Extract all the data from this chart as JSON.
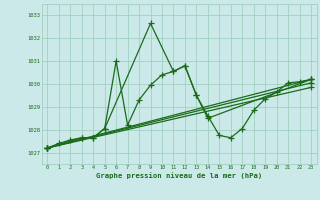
{
  "title": "Graphe pression niveau de la mer (hPa)",
  "background_color": "#cce9e9",
  "grid_color": "#99ccbb",
  "line_color": "#1a6b1a",
  "xlim": [
    -0.5,
    23.5
  ],
  "ylim": [
    1026.5,
    1033.5
  ],
  "yticks": [
    1027,
    1028,
    1029,
    1030,
    1031,
    1032,
    1033
  ],
  "xticks": [
    0,
    1,
    2,
    3,
    4,
    5,
    6,
    7,
    8,
    9,
    10,
    11,
    12,
    13,
    14,
    15,
    16,
    17,
    18,
    19,
    20,
    21,
    22,
    23
  ],
  "series_main": [
    [
      0,
      1027.2
    ],
    [
      1,
      1027.4
    ],
    [
      2,
      1027.55
    ],
    [
      3,
      1027.65
    ],
    [
      4,
      1027.65
    ],
    [
      5,
      1028.05
    ],
    [
      6,
      1031.0
    ],
    [
      7,
      1028.2
    ],
    [
      8,
      1029.3
    ],
    [
      9,
      1029.95
    ],
    [
      10,
      1030.4
    ],
    [
      11,
      1030.55
    ],
    [
      12,
      1030.8
    ],
    [
      13,
      1029.5
    ],
    [
      14,
      1028.6
    ],
    [
      15,
      1027.75
    ],
    [
      16,
      1027.65
    ],
    [
      17,
      1028.05
    ],
    [
      18,
      1028.85
    ],
    [
      19,
      1029.35
    ],
    [
      20,
      1029.65
    ],
    [
      21,
      1030.05
    ],
    [
      22,
      1030.1
    ],
    [
      23,
      1030.2
    ]
  ],
  "series_spike": [
    [
      0,
      1027.2
    ],
    [
      3,
      1027.65
    ],
    [
      4,
      1027.65
    ],
    [
      5,
      1028.05
    ],
    [
      9,
      1032.65
    ],
    [
      11,
      1030.55
    ],
    [
      12,
      1030.8
    ],
    [
      13,
      1029.5
    ],
    [
      14,
      1028.5
    ],
    [
      23,
      1030.2
    ]
  ],
  "series_line1": [
    [
      0,
      1027.2
    ],
    [
      23,
      1030.2
    ]
  ],
  "series_line2": [
    [
      0,
      1027.2
    ],
    [
      23,
      1030.05
    ]
  ],
  "series_line3": [
    [
      0,
      1027.2
    ],
    [
      23,
      1029.85
    ]
  ]
}
